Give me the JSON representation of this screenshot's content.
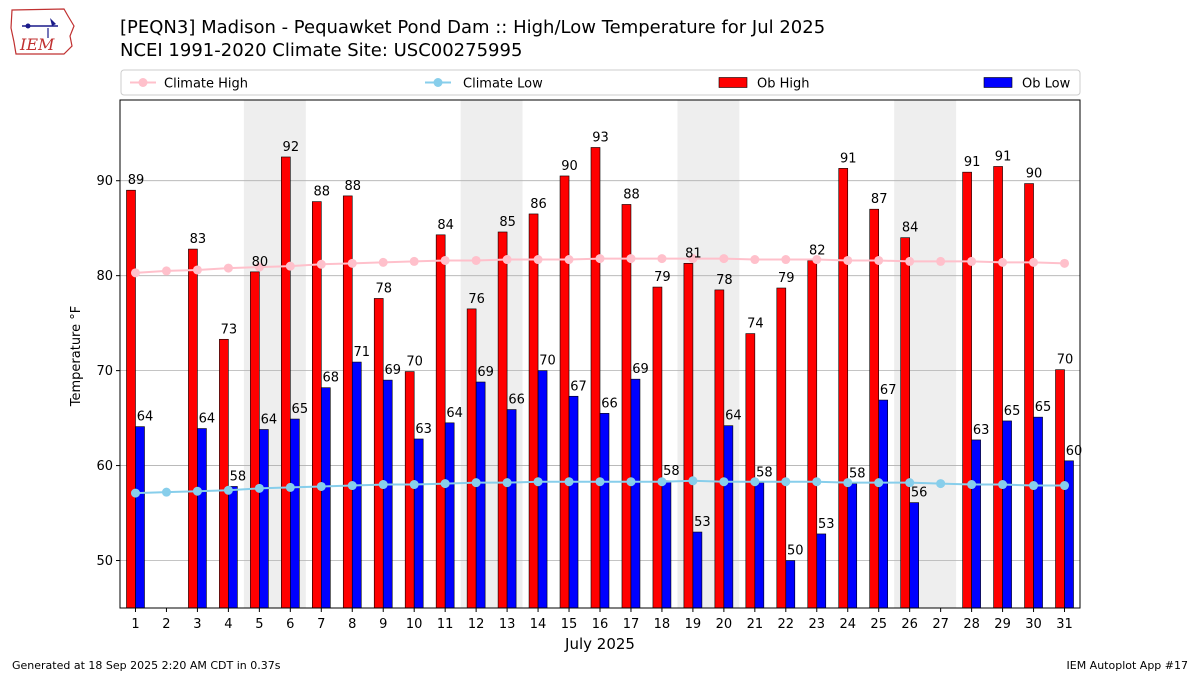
{
  "header": {
    "title": "[PEQN3] Madison - Pequawket Pond Dam :: High/Low Temperature for Jul 2025",
    "subtitle": "NCEI 1991-2020 Climate Site: USC00275995",
    "logo_text": "IEM"
  },
  "footer": {
    "generated": "Generated at 18 Sep 2025 2:20 AM CDT in 0.37s",
    "app": "IEM Autoplot App #17"
  },
  "colors": {
    "ob_high": "#ff0000",
    "ob_low": "#0000ff",
    "climate_high": "#ffc0cb",
    "climate_low": "#87ceeb",
    "weekend_band": "#eeeeee",
    "grid": "#b0b0b0"
  },
  "chart_data": {
    "type": "bar",
    "xlabel": "July 2025",
    "ylabel": "Temperature °F",
    "ylim": [
      45,
      98.5
    ],
    "yticks": [
      50,
      60,
      70,
      80,
      90
    ],
    "grid": "horizontal",
    "legend_position": "top",
    "categories": [
      "1",
      "2",
      "3",
      "4",
      "5",
      "6",
      "7",
      "8",
      "9",
      "10",
      "11",
      "12",
      "13",
      "14",
      "15",
      "16",
      "17",
      "18",
      "19",
      "20",
      "21",
      "22",
      "23",
      "24",
      "25",
      "26",
      "27",
      "28",
      "29",
      "30",
      "31"
    ],
    "weekend_bands": [
      [
        5,
        6
      ],
      [
        12,
        13
      ],
      [
        19,
        20
      ],
      [
        26,
        27
      ]
    ],
    "legend": [
      "Climate High",
      "Climate Low",
      "Ob High",
      "Ob Low"
    ],
    "series": [
      {
        "name": "Ob High",
        "kind": "bar",
        "values": [
          89,
          null,
          83,
          73,
          80,
          92,
          88,
          88,
          78,
          70,
          84,
          76,
          85,
          86,
          90,
          93,
          88,
          79,
          81,
          78,
          74,
          79,
          82,
          91,
          87,
          84,
          null,
          91,
          91,
          90,
          70
        ],
        "display": [
          89,
          null,
          82.8,
          73.3,
          80.4,
          92.5,
          87.8,
          88.4,
          77.6,
          69.9,
          84.3,
          76.5,
          84.6,
          86.5,
          90.5,
          93.5,
          87.5,
          78.8,
          81.3,
          78.5,
          73.9,
          78.7,
          81.6,
          91.3,
          87.0,
          84.0,
          null,
          90.9,
          91.5,
          89.7,
          70.1
        ]
      },
      {
        "name": "Ob Low",
        "kind": "bar",
        "values": [
          64,
          null,
          64,
          58,
          64,
          65,
          68,
          71,
          69,
          63,
          64,
          69,
          66,
          70,
          67,
          66,
          69,
          58,
          53,
          64,
          58,
          50,
          53,
          58,
          67,
          56,
          null,
          63,
          65,
          65,
          60
        ],
        "display": [
          64.1,
          null,
          63.9,
          57.8,
          63.8,
          64.9,
          68.2,
          70.9,
          69.0,
          62.8,
          64.5,
          68.8,
          65.9,
          70.0,
          67.3,
          65.5,
          69.1,
          58.4,
          53.0,
          64.2,
          58.2,
          50.0,
          52.8,
          58.1,
          66.9,
          56.1,
          null,
          62.7,
          64.7,
          65.1,
          60.5
        ]
      },
      {
        "name": "Climate High",
        "kind": "line",
        "values": [
          80.3,
          80.5,
          80.6,
          80.8,
          80.9,
          81.0,
          81.2,
          81.3,
          81.4,
          81.5,
          81.6,
          81.6,
          81.7,
          81.7,
          81.7,
          81.8,
          81.8,
          81.8,
          81.8,
          81.8,
          81.7,
          81.7,
          81.7,
          81.6,
          81.6,
          81.5,
          81.5,
          81.5,
          81.4,
          81.4,
          81.3
        ]
      },
      {
        "name": "Climate Low",
        "kind": "line",
        "values": [
          57.1,
          57.2,
          57.3,
          57.4,
          57.6,
          57.7,
          57.8,
          57.9,
          58.0,
          58.0,
          58.1,
          58.2,
          58.2,
          58.3,
          58.3,
          58.3,
          58.3,
          58.3,
          58.4,
          58.3,
          58.3,
          58.3,
          58.3,
          58.2,
          58.2,
          58.2,
          58.1,
          58.0,
          58.0,
          57.9,
          57.9
        ]
      }
    ]
  }
}
